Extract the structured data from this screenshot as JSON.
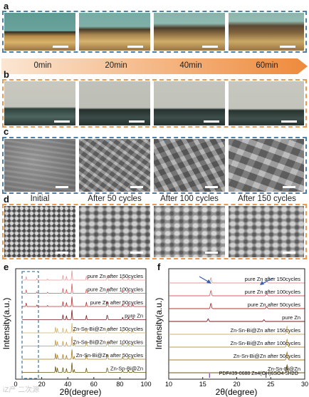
{
  "panels": {
    "a": "a",
    "b": "b",
    "c": "c",
    "d": "d",
    "e": "e",
    "f": "f"
  },
  "timeline": [
    "0min",
    "20min",
    "40min",
    "60min"
  ],
  "cycles": [
    "Initial",
    "After 50 cycles",
    "After 100 cycles",
    "After 150 cycles"
  ],
  "colors": {
    "blue_frame": "#4f7fa8",
    "orange_frame": "#e89a55",
    "arrow_light": "#fbe6d2",
    "arrow_dark": "#ee8a3c"
  },
  "chart_data": [
    {
      "type": "line",
      "xlabel": "2θ(degree)",
      "ylabel": "Intensity(a.u.)",
      "xlim": [
        0,
        100
      ],
      "xticks": [
        0,
        20,
        40,
        60,
        80,
        100
      ],
      "series": [
        {
          "name": "pure Zn after 150cycles",
          "color": "#e69a9a"
        },
        {
          "name": "pure Zn after 100cycles",
          "color": "#d95c5c"
        },
        {
          "name": "pure Zn after 50cycles",
          "color": "#bb3030"
        },
        {
          "name": "pure Zn",
          "color": "#7a1a1a"
        },
        {
          "name": "Zn-Sn-Bi@Zn after 150cycles",
          "color": "#d2b36a"
        },
        {
          "name": "Zn-Sn-Bi@Zn after 100cycles",
          "color": "#c29a45"
        },
        {
          "name": "Zn-Sn-Bi@Zn after 50cycles",
          "color": "#a67c22"
        },
        {
          "name": "Zn-Sn-Bi@Zn",
          "color": "#6e5512"
        }
      ]
    },
    {
      "type": "line",
      "xlabel": "2θ(degree)",
      "ylabel": "Intensity(a.u.)",
      "xlim": [
        10,
        30
      ],
      "xticks": [
        10,
        15,
        20,
        25,
        30
      ],
      "reference": "PDF#39-0688 Zn4(OH)6SO4·5H2O",
      "series": [
        {
          "name": "pure Zn after 150cycles",
          "color": "#e69a9a"
        },
        {
          "name": "pure Zn after 100cycles",
          "color": "#d95c5c"
        },
        {
          "name": "pure Zn after 50cycles",
          "color": "#bb3030"
        },
        {
          "name": "pure Zn",
          "color": "#7a1a1a"
        },
        {
          "name": "Zn-Sn-Bi@Zn after 150cycles",
          "color": "#d2b36a"
        },
        {
          "name": "Zn-Sn-Bi@Zn after 100cycles",
          "color": "#c29a45"
        },
        {
          "name": "Zn-Sn-Bi@Zn after 50cycles",
          "color": "#a67c22"
        },
        {
          "name": "Zn-Sn-Bi@Zn",
          "color": "#6e5512"
        }
      ]
    }
  ],
  "watermark": "iZ产 二次源"
}
